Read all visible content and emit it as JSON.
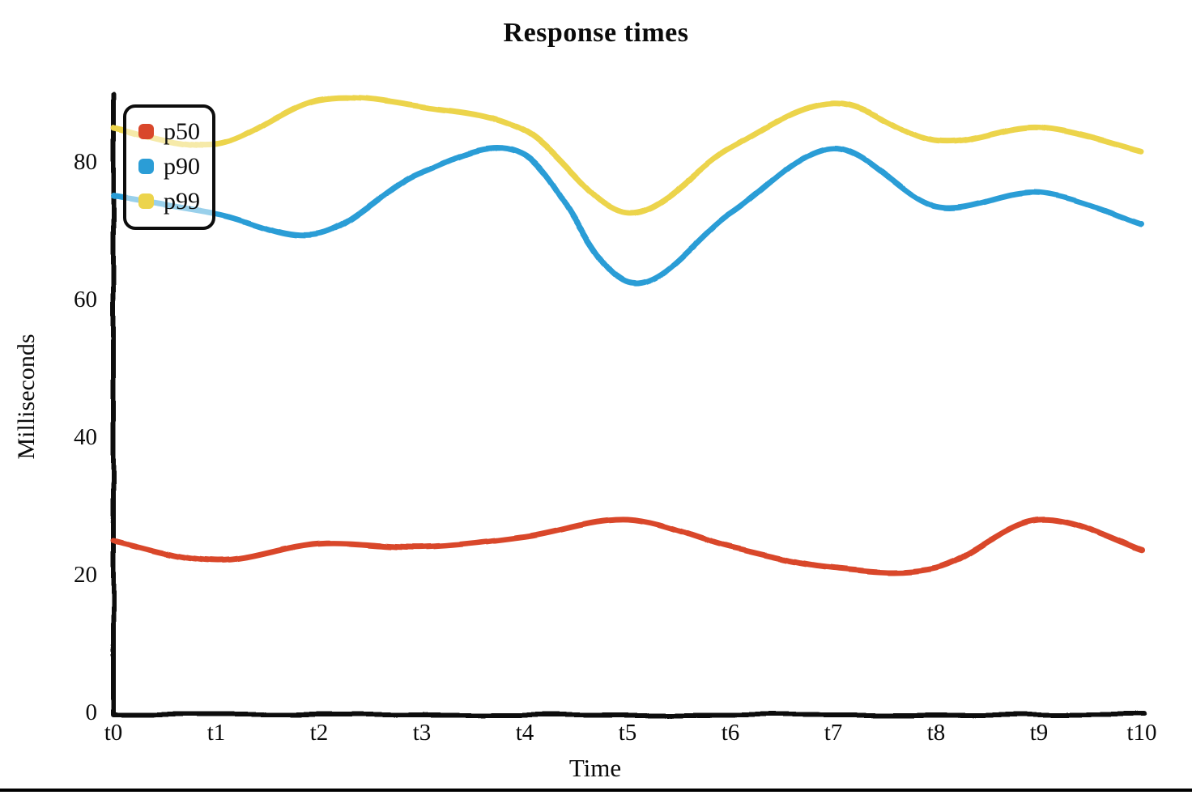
{
  "page": {
    "background": "#ffffff",
    "bottom_border_color": "#000000",
    "axis_color": "#111111",
    "text_color": "#0b0b0b"
  },
  "legend": {
    "position": "top-left",
    "items": [
      "p50",
      "p90",
      "p99"
    ]
  },
  "chart_data": {
    "type": "line",
    "title": "Response times",
    "xlabel": "Time",
    "ylabel": "Milliseconds",
    "categories": [
      "t0",
      "t1",
      "t2",
      "t3",
      "t4",
      "t5",
      "t6",
      "t7",
      "t8",
      "t9",
      "t10"
    ],
    "y_ticks": [
      0,
      20,
      40,
      60,
      80
    ],
    "ylim": [
      0,
      90
    ],
    "grid": false,
    "legend_position": "top-left",
    "style": "hand-drawn xkcd-like strokes, white background, black axes, no gridlines",
    "series": [
      {
        "name": "p50",
        "color": "#d9472b",
        "values": [
          25,
          22,
          24.5,
          24,
          25.5,
          28,
          24,
          21,
          21,
          28,
          23.5
        ]
      },
      {
        "name": "p90",
        "color": "#2b9dd6",
        "values": [
          75,
          72.5,
          69.5,
          78.5,
          81,
          62.5,
          72.5,
          82,
          73.5,
          75.5,
          71
        ]
      },
      {
        "name": "p99",
        "color": "#ecd44c",
        "values": [
          85,
          82.5,
          89,
          88,
          84.5,
          72.5,
          82,
          88.5,
          83,
          85,
          81.5
        ]
      }
    ]
  }
}
